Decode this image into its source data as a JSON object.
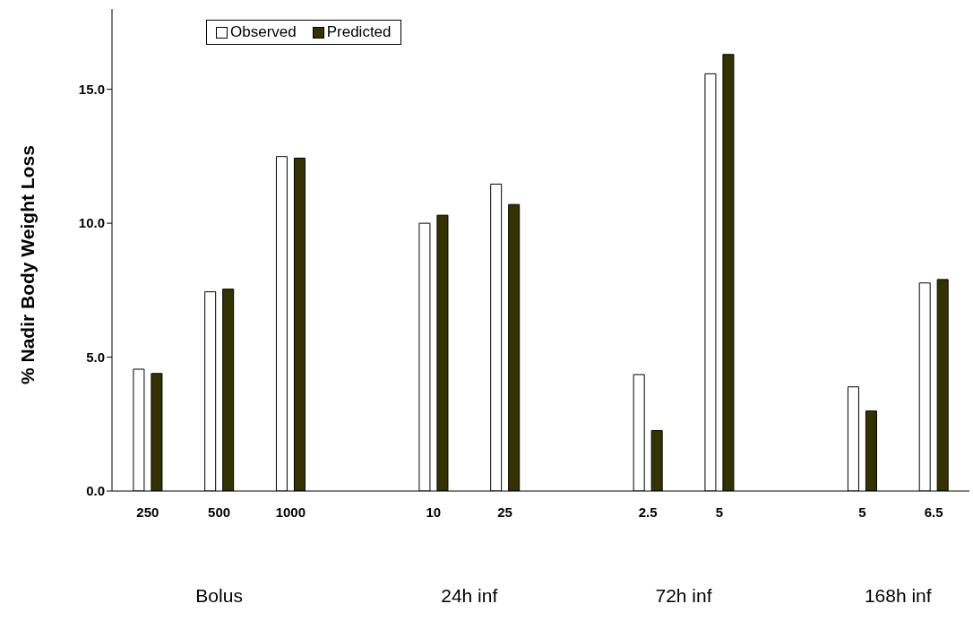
{
  "chart_data": {
    "type": "bar",
    "ylabel": "% Nadir Body Weight Loss",
    "categories": [
      "250",
      "500",
      "1000",
      null,
      "10",
      "25",
      null,
      "2.5",
      "5",
      null,
      "5",
      "6.5"
    ],
    "series": [
      {
        "name": "Observed",
        "color": "#ffffff",
        "values": [
          4.55,
          7.44,
          12.49,
          null,
          10.0,
          11.46,
          null,
          4.35,
          15.58,
          null,
          3.89,
          7.77
        ]
      },
      {
        "name": "Predicted",
        "color": "#333300",
        "values": [
          4.39,
          7.54,
          12.43,
          null,
          10.3,
          10.7,
          null,
          2.26,
          16.3,
          null,
          2.99,
          7.9
        ]
      }
    ],
    "ylim": [
      0,
      18
    ],
    "yticks": [
      {
        "value": 0,
        "label": "0.0"
      },
      {
        "value": 5,
        "label": "5.0"
      },
      {
        "value": 10,
        "label": "10.0"
      },
      {
        "value": 15,
        "label": "15.0"
      }
    ],
    "annotations": [
      "Bolus",
      "24h inf",
      "72h inf",
      "168h inf"
    ],
    "legend": "top left",
    "grid": false
  }
}
